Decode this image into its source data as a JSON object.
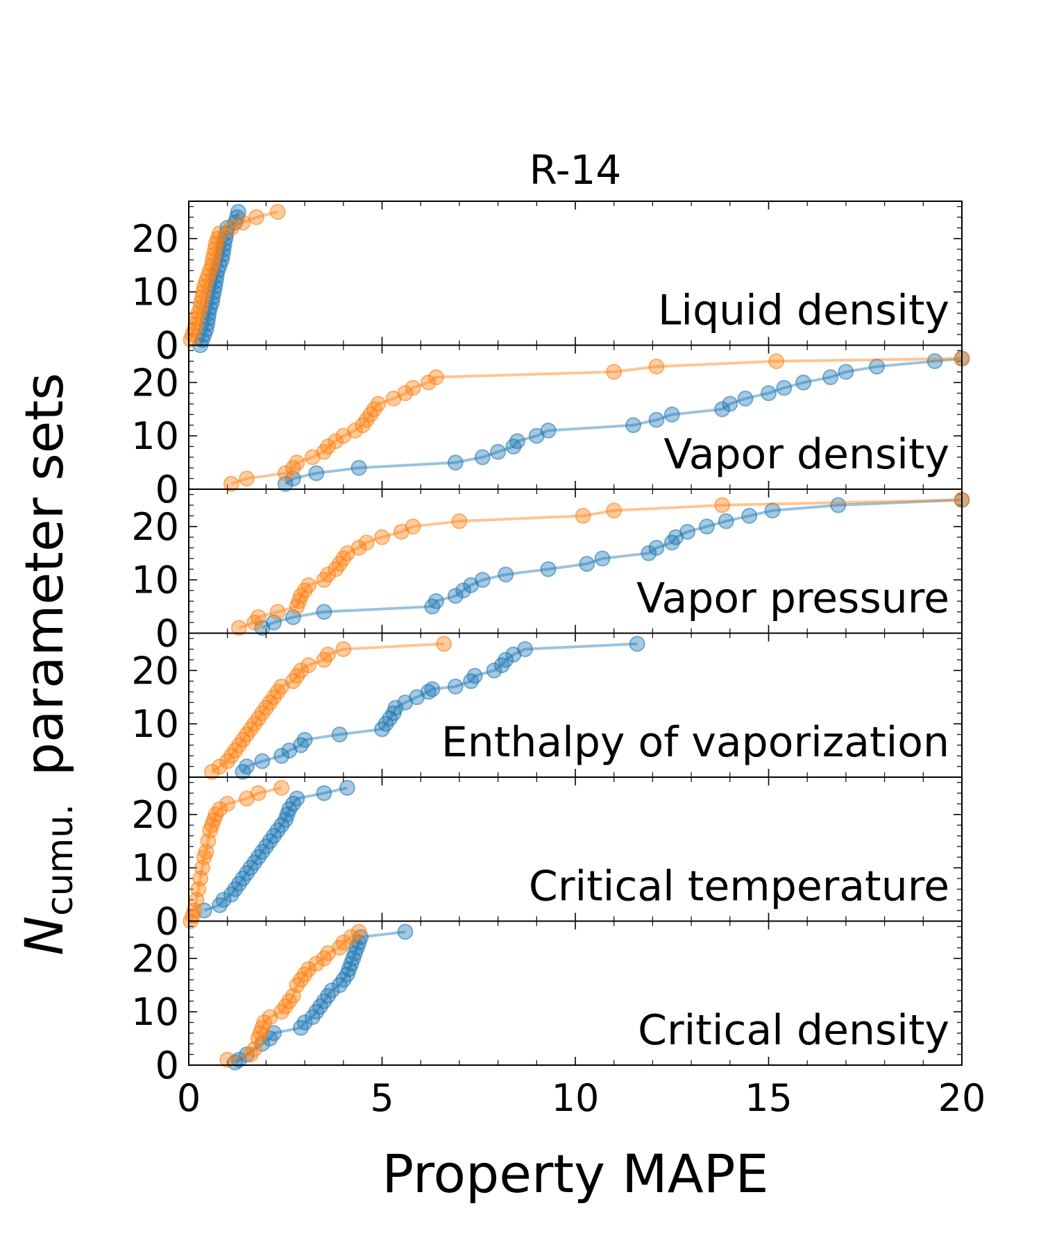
{
  "chart_data": {
    "type": "line",
    "title": "R-14",
    "xlabel": "Property MAPE",
    "ylabel_main": "N",
    "ylabel_sub": "cumu.",
    "ylabel_rest": "parameter sets",
    "xlim": [
      0,
      20
    ],
    "ylim": [
      0,
      27
    ],
    "xticks": [
      "0",
      "5",
      "10",
      "15",
      "20"
    ],
    "yticks": [
      "0",
      "10",
      "20"
    ],
    "grid": false,
    "colors": {
      "blue": "#1f77b4",
      "orange": "#ff7f0e"
    },
    "panels": [
      {
        "name": "Liquid density",
        "blue": [
          [
            0.3,
            0
          ],
          [
            0.35,
            1
          ],
          [
            0.4,
            2
          ],
          [
            0.45,
            3
          ],
          [
            0.48,
            4
          ],
          [
            0.5,
            5
          ],
          [
            0.52,
            6
          ],
          [
            0.55,
            7
          ],
          [
            0.6,
            8
          ],
          [
            0.62,
            9
          ],
          [
            0.65,
            10
          ],
          [
            0.68,
            11
          ],
          [
            0.7,
            12
          ],
          [
            0.72,
            13
          ],
          [
            0.75,
            14
          ],
          [
            0.8,
            15
          ],
          [
            0.85,
            16
          ],
          [
            0.88,
            17
          ],
          [
            0.9,
            18
          ],
          [
            0.92,
            19
          ],
          [
            0.95,
            20
          ],
          [
            0.97,
            21
          ],
          [
            1.0,
            22
          ],
          [
            1.2,
            23
          ],
          [
            1.25,
            24
          ],
          [
            1.28,
            25
          ]
        ],
        "orange": [
          [
            0.05,
            1
          ],
          [
            0.1,
            2
          ],
          [
            0.15,
            3
          ],
          [
            0.18,
            4
          ],
          [
            0.2,
            5
          ],
          [
            0.25,
            6
          ],
          [
            0.3,
            7
          ],
          [
            0.32,
            8
          ],
          [
            0.35,
            9
          ],
          [
            0.38,
            10
          ],
          [
            0.4,
            11
          ],
          [
            0.45,
            12
          ],
          [
            0.5,
            13
          ],
          [
            0.55,
            14
          ],
          [
            0.6,
            15
          ],
          [
            0.62,
            16
          ],
          [
            0.65,
            17
          ],
          [
            0.68,
            18
          ],
          [
            0.7,
            19
          ],
          [
            0.75,
            20
          ],
          [
            0.8,
            21
          ],
          [
            1.1,
            22
          ],
          [
            1.4,
            23
          ],
          [
            1.75,
            24
          ],
          [
            2.3,
            25
          ]
        ]
      },
      {
        "name": "Vapor density",
        "blue": [
          [
            2.5,
            1
          ],
          [
            2.7,
            2
          ],
          [
            3.3,
            3
          ],
          [
            4.4,
            4
          ],
          [
            6.9,
            5
          ],
          [
            7.6,
            6
          ],
          [
            8.0,
            7
          ],
          [
            8.4,
            8
          ],
          [
            8.5,
            9
          ],
          [
            9.0,
            10
          ],
          [
            9.3,
            11
          ],
          [
            11.5,
            12
          ],
          [
            12.1,
            13
          ],
          [
            12.5,
            14
          ],
          [
            13.8,
            15
          ],
          [
            14.0,
            16
          ],
          [
            14.4,
            17
          ],
          [
            15.0,
            18
          ],
          [
            15.4,
            19
          ],
          [
            15.9,
            20
          ],
          [
            16.6,
            21
          ],
          [
            17.0,
            22
          ],
          [
            17.8,
            23
          ],
          [
            19.3,
            24
          ],
          [
            20.0,
            24.5
          ]
        ],
        "orange": [
          [
            1.1,
            1
          ],
          [
            1.5,
            2
          ],
          [
            2.5,
            3
          ],
          [
            2.7,
            4
          ],
          [
            2.8,
            5
          ],
          [
            3.2,
            6
          ],
          [
            3.5,
            7
          ],
          [
            3.6,
            8
          ],
          [
            3.8,
            9
          ],
          [
            4.0,
            10
          ],
          [
            4.3,
            11
          ],
          [
            4.5,
            12
          ],
          [
            4.6,
            13
          ],
          [
            4.7,
            14
          ],
          [
            4.8,
            15
          ],
          [
            4.9,
            16
          ],
          [
            5.3,
            17
          ],
          [
            5.6,
            18
          ],
          [
            5.8,
            19
          ],
          [
            6.2,
            20
          ],
          [
            6.4,
            21
          ],
          [
            11.0,
            22
          ],
          [
            12.1,
            23
          ],
          [
            15.2,
            24
          ],
          [
            20.0,
            24.5
          ]
        ]
      },
      {
        "name": "Vapor pressure",
        "blue": [
          [
            1.9,
            1
          ],
          [
            2.2,
            2
          ],
          [
            2.7,
            3
          ],
          [
            3.5,
            4
          ],
          [
            6.3,
            5
          ],
          [
            6.4,
            6
          ],
          [
            6.9,
            7
          ],
          [
            7.1,
            8
          ],
          [
            7.3,
            9
          ],
          [
            7.6,
            10
          ],
          [
            8.2,
            11
          ],
          [
            9.3,
            12
          ],
          [
            10.3,
            13
          ],
          [
            10.7,
            14
          ],
          [
            11.9,
            15
          ],
          [
            12.1,
            16
          ],
          [
            12.5,
            17
          ],
          [
            12.6,
            18
          ],
          [
            12.9,
            19
          ],
          [
            13.4,
            20
          ],
          [
            13.9,
            21
          ],
          [
            14.5,
            22
          ],
          [
            15.1,
            23
          ],
          [
            16.8,
            24
          ],
          [
            20.0,
            25
          ]
        ],
        "orange": [
          [
            1.3,
            1
          ],
          [
            1.7,
            2
          ],
          [
            1.8,
            3
          ],
          [
            2.3,
            4
          ],
          [
            2.8,
            5
          ],
          [
            2.85,
            6
          ],
          [
            2.9,
            7
          ],
          [
            3.0,
            8
          ],
          [
            3.1,
            9
          ],
          [
            3.5,
            10
          ],
          [
            3.6,
            11
          ],
          [
            3.8,
            12
          ],
          [
            3.9,
            13
          ],
          [
            4.0,
            14
          ],
          [
            4.1,
            15
          ],
          [
            4.4,
            16
          ],
          [
            4.6,
            17
          ],
          [
            5.0,
            18
          ],
          [
            5.5,
            19
          ],
          [
            5.8,
            20
          ],
          [
            7.0,
            21
          ],
          [
            10.2,
            22
          ],
          [
            11.0,
            23
          ],
          [
            13.8,
            24
          ],
          [
            20.0,
            25
          ]
        ]
      },
      {
        "name": "Enthalpy of vaporization",
        "blue": [
          [
            1.4,
            1
          ],
          [
            1.5,
            2
          ],
          [
            1.9,
            3
          ],
          [
            2.4,
            4
          ],
          [
            2.6,
            5
          ],
          [
            2.9,
            6
          ],
          [
            3.0,
            7
          ],
          [
            3.9,
            8
          ],
          [
            5.0,
            9
          ],
          [
            5.1,
            10
          ],
          [
            5.2,
            11
          ],
          [
            5.3,
            12
          ],
          [
            5.35,
            13
          ],
          [
            5.6,
            14
          ],
          [
            5.9,
            15
          ],
          [
            6.2,
            16
          ],
          [
            6.3,
            16.5
          ],
          [
            6.9,
            17
          ],
          [
            7.3,
            18
          ],
          [
            7.4,
            19
          ],
          [
            7.9,
            20
          ],
          [
            8.1,
            21
          ],
          [
            8.2,
            22
          ],
          [
            8.4,
            23
          ],
          [
            8.7,
            24
          ],
          [
            11.6,
            25
          ]
        ],
        "orange": [
          [
            0.6,
            1
          ],
          [
            0.8,
            2
          ],
          [
            1.0,
            3
          ],
          [
            1.1,
            4
          ],
          [
            1.2,
            5
          ],
          [
            1.3,
            6
          ],
          [
            1.4,
            7
          ],
          [
            1.5,
            8
          ],
          [
            1.6,
            9
          ],
          [
            1.7,
            10
          ],
          [
            1.8,
            11
          ],
          [
            1.9,
            12
          ],
          [
            2.0,
            13
          ],
          [
            2.1,
            14
          ],
          [
            2.2,
            15
          ],
          [
            2.3,
            16
          ],
          [
            2.4,
            17
          ],
          [
            2.7,
            18
          ],
          [
            2.8,
            19
          ],
          [
            2.9,
            20
          ],
          [
            3.1,
            21
          ],
          [
            3.5,
            22
          ],
          [
            3.6,
            23
          ],
          [
            4.0,
            24
          ],
          [
            6.6,
            25
          ]
        ]
      },
      {
        "name": "Critical temperature",
        "blue": [
          [
            0.4,
            2
          ],
          [
            0.8,
            3
          ],
          [
            0.9,
            4
          ],
          [
            1.1,
            5
          ],
          [
            1.2,
            6
          ],
          [
            1.3,
            7
          ],
          [
            1.4,
            8
          ],
          [
            1.5,
            9
          ],
          [
            1.6,
            10
          ],
          [
            1.7,
            11
          ],
          [
            1.8,
            12
          ],
          [
            1.9,
            13
          ],
          [
            2.0,
            14
          ],
          [
            2.1,
            15
          ],
          [
            2.2,
            16
          ],
          [
            2.3,
            17
          ],
          [
            2.4,
            18
          ],
          [
            2.5,
            19
          ],
          [
            2.55,
            20
          ],
          [
            2.6,
            21
          ],
          [
            2.7,
            22
          ],
          [
            2.8,
            23
          ],
          [
            3.5,
            24
          ],
          [
            4.1,
            25
          ]
        ],
        "orange": [
          [
            0.05,
            0
          ],
          [
            0.1,
            1
          ],
          [
            0.15,
            2
          ],
          [
            0.2,
            4
          ],
          [
            0.25,
            6
          ],
          [
            0.3,
            8
          ],
          [
            0.35,
            10
          ],
          [
            0.4,
            12
          ],
          [
            0.45,
            13
          ],
          [
            0.5,
            15
          ],
          [
            0.55,
            17
          ],
          [
            0.6,
            18
          ],
          [
            0.65,
            19
          ],
          [
            0.7,
            20
          ],
          [
            0.8,
            21
          ],
          [
            1.0,
            22
          ],
          [
            1.5,
            23
          ],
          [
            1.8,
            24
          ],
          [
            2.4,
            25
          ]
        ]
      },
      {
        "name": "Critical density",
        "blue": [
          [
            1.2,
            0.5
          ],
          [
            1.3,
            1
          ],
          [
            1.5,
            2
          ],
          [
            1.9,
            4
          ],
          [
            2.1,
            5
          ],
          [
            2.2,
            6
          ],
          [
            2.9,
            7
          ],
          [
            3.0,
            8
          ],
          [
            3.2,
            9
          ],
          [
            3.3,
            10
          ],
          [
            3.4,
            11
          ],
          [
            3.5,
            12
          ],
          [
            3.6,
            13
          ],
          [
            3.7,
            14
          ],
          [
            3.9,
            15
          ],
          [
            4.0,
            16
          ],
          [
            4.1,
            17
          ],
          [
            4.15,
            18
          ],
          [
            4.2,
            19
          ],
          [
            4.25,
            20
          ],
          [
            4.3,
            21
          ],
          [
            4.35,
            22
          ],
          [
            4.4,
            23
          ],
          [
            4.45,
            24
          ],
          [
            5.6,
            25
          ]
        ],
        "orange": [
          [
            1.0,
            1
          ],
          [
            1.6,
            2
          ],
          [
            1.7,
            3
          ],
          [
            1.8,
            5
          ],
          [
            1.85,
            6
          ],
          [
            1.9,
            7
          ],
          [
            1.95,
            8
          ],
          [
            2.1,
            9
          ],
          [
            2.4,
            10
          ],
          [
            2.5,
            11
          ],
          [
            2.6,
            12
          ],
          [
            2.7,
            13
          ],
          [
            2.8,
            15
          ],
          [
            2.9,
            16
          ],
          [
            3.0,
            17
          ],
          [
            3.1,
            18
          ],
          [
            3.3,
            19
          ],
          [
            3.5,
            20
          ],
          [
            3.6,
            21
          ],
          [
            3.9,
            22
          ],
          [
            4.0,
            23
          ],
          [
            4.2,
            24
          ],
          [
            4.4,
            25
          ]
        ]
      }
    ]
  }
}
